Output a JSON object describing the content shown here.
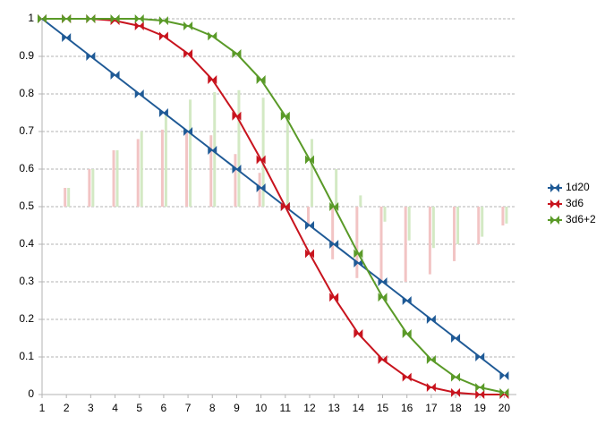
{
  "chart_data": {
    "type": "line",
    "x": [
      1,
      2,
      3,
      4,
      5,
      6,
      7,
      8,
      9,
      10,
      11,
      12,
      13,
      14,
      15,
      16,
      17,
      18,
      19,
      20
    ],
    "xlim": [
      1,
      20.5
    ],
    "xticks": [
      1,
      2,
      3,
      4,
      5,
      6,
      7,
      8,
      9,
      10,
      11,
      12,
      13,
      14,
      15,
      16,
      17,
      18,
      19,
      20
    ],
    "ylim": [
      0,
      1
    ],
    "yticks": [
      0,
      0.1,
      0.2,
      0.3,
      0.4,
      0.5,
      0.6,
      0.7,
      0.8,
      0.9,
      1
    ],
    "grid": true,
    "legend": "right",
    "series": [
      {
        "name": "1d20",
        "color": "#1f5a96",
        "values": [
          1,
          0.95,
          0.9,
          0.85,
          0.8,
          0.75,
          0.7,
          0.65,
          0.6,
          0.55,
          0.5,
          0.45,
          0.4,
          0.35,
          0.3,
          0.25,
          0.2,
          0.15,
          0.1,
          0.05
        ]
      },
      {
        "name": "3d6",
        "color": "#c8141e",
        "values": [
          1,
          1,
          1,
          0.995,
          0.981,
          0.954,
          0.907,
          0.838,
          0.741,
          0.625,
          0.5,
          0.375,
          0.259,
          0.162,
          0.093,
          0.046,
          0.019,
          0.005,
          0,
          0
        ]
      },
      {
        "name": "3d6+2",
        "color": "#5a9a28",
        "values": [
          1,
          1,
          1,
          1,
          1,
          0.995,
          0.981,
          0.954,
          0.907,
          0.838,
          0.741,
          0.625,
          0.5,
          0.375,
          0.259,
          0.162,
          0.093,
          0.046,
          0.019,
          0.005
        ]
      }
    ],
    "bar_base": 0.5,
    "bars": [
      {
        "color": "#f2c4c4",
        "values": [
          null,
          0.55,
          0.6,
          0.65,
          0.68,
          0.705,
          0.7,
          0.69,
          0.64,
          0.59,
          0.5,
          0.45,
          0.36,
          0.31,
          0.3,
          0.3,
          0.32,
          0.355,
          0.4,
          0.45
        ]
      },
      {
        "color": "#d3e9c4",
        "values": [
          null,
          0.55,
          0.6,
          0.65,
          0.7,
          0.75,
          0.785,
          0.805,
          0.81,
          0.79,
          0.75,
          0.68,
          0.6,
          0.53,
          0.46,
          0.41,
          0.39,
          0.4,
          0.42,
          0.455
        ]
      }
    ]
  }
}
